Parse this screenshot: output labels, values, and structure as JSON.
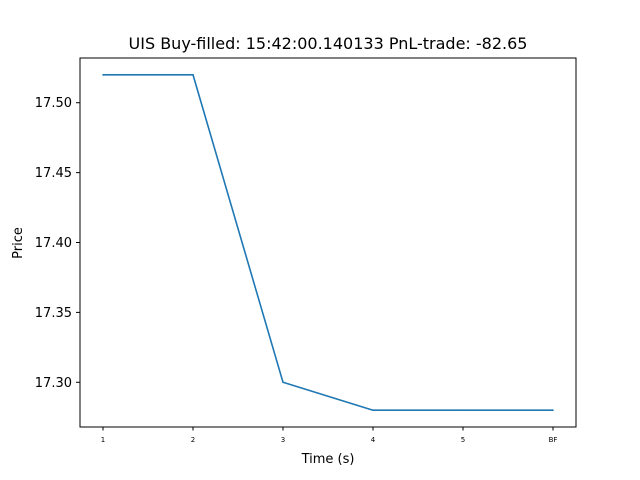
{
  "chart_data": {
    "type": "line",
    "title": "UIS  Buy-filled:  15:42:00.140133  PnL-trade:  -82.65",
    "xlabel": "Time (s)",
    "ylabel": "Price",
    "categories": [
      "1",
      "2",
      "3",
      "4",
      "5",
      "BF"
    ],
    "series": [
      {
        "values": [
          17.52,
          17.52,
          17.3,
          17.28,
          17.28,
          17.28
        ],
        "color": "#1f77b4"
      }
    ],
    "yticks": [
      "17.30",
      "17.35",
      "17.40",
      "17.45",
      "17.50"
    ],
    "ylim": [
      17.268,
      17.532
    ],
    "grid": false,
    "legend": "none"
  }
}
